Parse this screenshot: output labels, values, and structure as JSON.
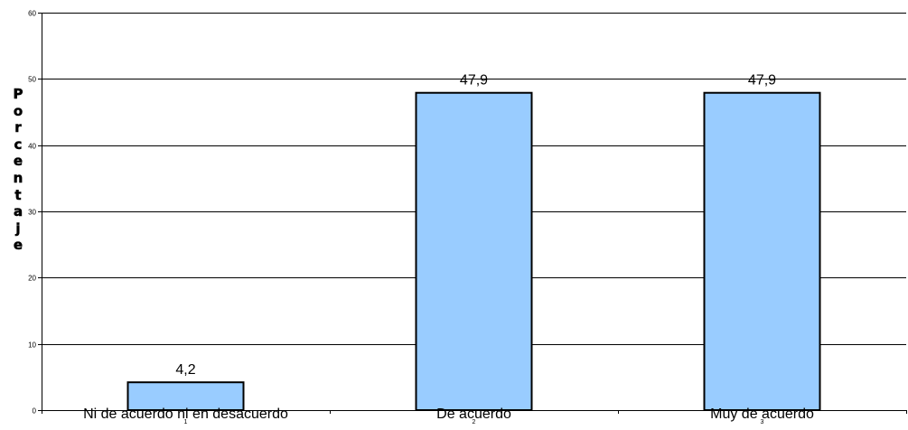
{
  "chart_data": {
    "type": "bar",
    "title": "",
    "ylabel": "Porcentaje",
    "xlabel": "",
    "ylim": [
      0,
      60
    ],
    "yticks": [
      0,
      10,
      20,
      30,
      40,
      50,
      60
    ],
    "grid": true,
    "categories": [
      "Ni de acuerdo ni en desacuerdo",
      "De acuerdo",
      "Muy de acuerdo"
    ],
    "category_index_labels": [
      "1",
      "2",
      "3"
    ],
    "values": [
      4.2,
      47.9,
      47.9
    ],
    "value_labels": [
      "4,2",
      "47,9",
      "47,9"
    ],
    "bar_color": "#99ccff",
    "bar_stroke": "#000000",
    "legend": "none"
  }
}
